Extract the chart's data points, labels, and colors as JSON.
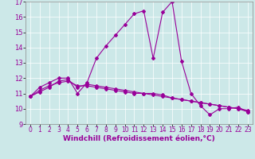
{
  "xlabel": "Windchill (Refroidissement éolien,°C)",
  "xlim": [
    -0.5,
    23.5
  ],
  "ylim": [
    9,
    17
  ],
  "xticks": [
    0,
    1,
    2,
    3,
    4,
    5,
    6,
    7,
    8,
    9,
    10,
    11,
    12,
    13,
    14,
    15,
    16,
    17,
    18,
    19,
    20,
    21,
    22,
    23
  ],
  "yticks": [
    9,
    10,
    11,
    12,
    13,
    14,
    15,
    16,
    17
  ],
  "bg_color": "#cce8e8",
  "line_color": "#990099",
  "line1_x": [
    0,
    1,
    2,
    3,
    4,
    5,
    6,
    7,
    8,
    9,
    10,
    11,
    12,
    13,
    14,
    15,
    16,
    17,
    18,
    19,
    20,
    21,
    22,
    23
  ],
  "line1_y": [
    10.8,
    11.4,
    11.7,
    12.0,
    12.0,
    11.0,
    11.7,
    13.3,
    14.1,
    14.8,
    15.5,
    16.2,
    16.4,
    13.3,
    16.3,
    17.0,
    13.1,
    11.0,
    10.2,
    9.6,
    10.0,
    10.0,
    10.1,
    9.8
  ],
  "line2_x": [
    0,
    1,
    2,
    3,
    4,
    5,
    6,
    7,
    8,
    9,
    10,
    11,
    12,
    13,
    14,
    15,
    16,
    17,
    18,
    19,
    20,
    21,
    22,
    23
  ],
  "line2_y": [
    10.8,
    11.2,
    11.5,
    11.7,
    11.8,
    11.5,
    11.5,
    11.4,
    11.3,
    11.2,
    11.1,
    11.0,
    11.0,
    10.9,
    10.8,
    10.7,
    10.6,
    10.5,
    10.4,
    10.3,
    10.2,
    10.1,
    10.0,
    9.9
  ],
  "line3_x": [
    0,
    1,
    2,
    3,
    4,
    5,
    6,
    7,
    8,
    9,
    10,
    11,
    12,
    13,
    14,
    15,
    16,
    17,
    18,
    19,
    20,
    21,
    22,
    23
  ],
  "line3_y": [
    10.8,
    11.1,
    11.4,
    11.8,
    11.9,
    11.4,
    11.6,
    11.5,
    11.4,
    11.3,
    11.2,
    11.1,
    11.0,
    11.0,
    10.9,
    10.7,
    10.6,
    10.5,
    10.4,
    10.3,
    10.2,
    10.1,
    10.0,
    9.8
  ],
  "grid_color": "#ffffff",
  "label_fontsize": 6.5,
  "tick_fontsize": 5.5
}
